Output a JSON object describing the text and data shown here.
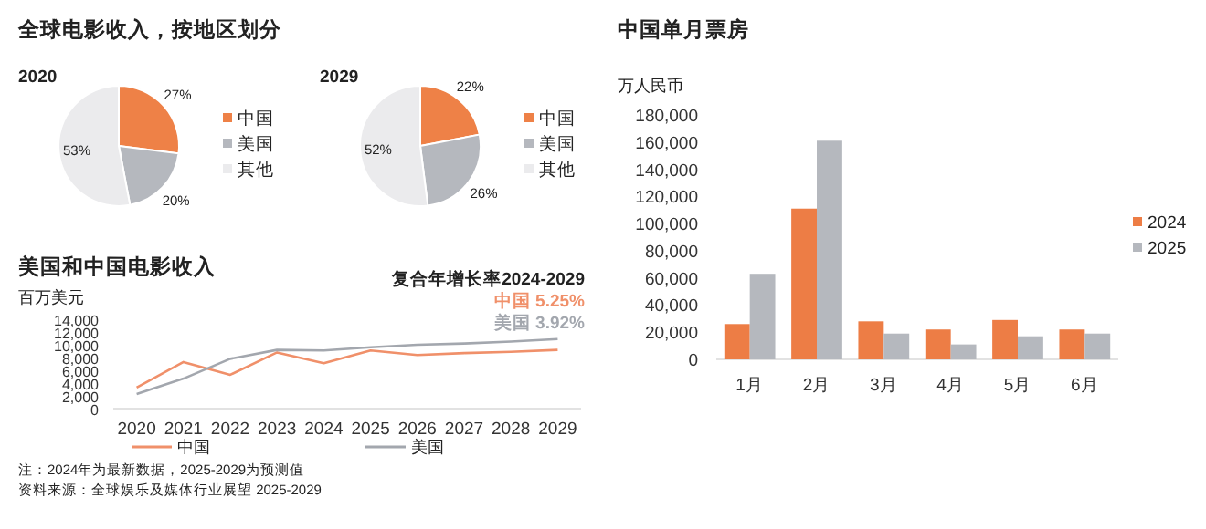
{
  "chart_data": [
    {
      "type": "pie",
      "title": "全球电影收入，按地区划分",
      "subtitle": "2020",
      "categories": [
        "中国",
        "美国",
        "其他"
      ],
      "values": [
        27,
        20,
        53
      ],
      "colors": [
        "#ee8147",
        "#b5b8be",
        "#ebebed"
      ],
      "value_labels": [
        "27%",
        "20%",
        "53%"
      ],
      "legend": "right"
    },
    {
      "type": "pie",
      "subtitle": "2029",
      "categories": [
        "中国",
        "美国",
        "其他"
      ],
      "values": [
        22,
        26,
        52
      ],
      "colors": [
        "#ee8147",
        "#b5b8be",
        "#ebebed"
      ],
      "value_labels": [
        "22%",
        "26%",
        "52%"
      ],
      "legend": "right"
    },
    {
      "type": "line",
      "title": "美国和中国电影收入",
      "ylabel": "百万美元",
      "categories": [
        "2020",
        "2021",
        "2022",
        "2023",
        "2024",
        "2025",
        "2026",
        "2027",
        "2028",
        "2029"
      ],
      "series": [
        {
          "name": "中国",
          "color": "#f0906a",
          "values": [
            3300,
            7300,
            5300,
            8800,
            7100,
            9100,
            8400,
            8700,
            8900,
            9200
          ]
        },
        {
          "name": "美国",
          "color": "#a3a7ae",
          "values": [
            2300,
            4700,
            7800,
            9200,
            9100,
            9600,
            10000,
            10200,
            10500,
            10900
          ]
        }
      ],
      "ylim": [
        0,
        14000
      ],
      "yticks": [
        0,
        {
          "value": 2000,
          "label": "2,000"
        },
        {
          "value": 4000,
          "label": "4,000"
        },
        {
          "value": 6000,
          "label": "6,000"
        },
        {
          "value": 8000,
          "label": "8,000"
        },
        {
          "value": 10000,
          "label": "10,000"
        },
        {
          "value": 12000,
          "label": "12,000"
        },
        {
          "value": 14000,
          "label": "14,000"
        }
      ],
      "legend": "bottom",
      "annotations": [
        "复合年增长率2024-2029",
        "中国 5.25%",
        "美国 3.92%",
        "注：2024年为最新数据，2025-2029为预测值",
        "资料来源：全球娱乐及媒体行业展望 2025-2029"
      ]
    },
    {
      "type": "bar",
      "title": "中国单月票房",
      "ylabel": "万人民币",
      "categories": [
        "1月",
        "2月",
        "3月",
        "4月",
        "5月",
        "6月"
      ],
      "series": [
        {
          "name": "2024",
          "color": "#ed7d45",
          "values": [
            26000,
            111000,
            28000,
            22000,
            29000,
            22000
          ]
        },
        {
          "name": "2025",
          "color": "#b5b8be",
          "values": [
            63000,
            161000,
            19000,
            11000,
            17000,
            19000
          ]
        }
      ],
      "ylim": [
        0,
        180000
      ],
      "yticks": [
        0,
        {
          "value": 20000,
          "label": "20,000"
        },
        {
          "value": 40000,
          "label": "40,000"
        },
        {
          "value": 60000,
          "label": "60,000"
        },
        {
          "value": 80000,
          "label": "80,000"
        },
        {
          "value": 100000,
          "label": "100,000"
        },
        {
          "value": 120000,
          "label": "120,000"
        },
        {
          "value": 140000,
          "label": "140,000"
        },
        {
          "value": 160000,
          "label": "160,000"
        },
        {
          "value": 180000,
          "label": "180,000"
        }
      ],
      "legend": "right"
    }
  ]
}
